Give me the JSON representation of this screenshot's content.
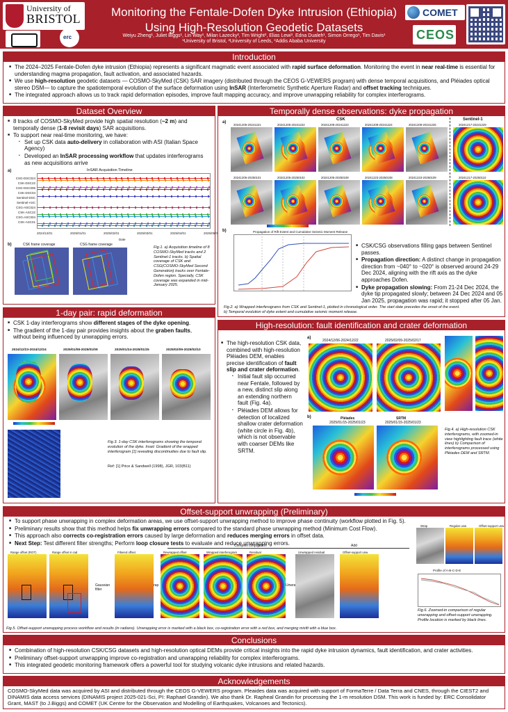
{
  "header": {
    "title_line1": "Monitoring the Fentale-Dofen Dyke Intrusion (Ethiopia)",
    "title_line2": "Using High-Resolution Geodetic Datasets",
    "authors": "Weiyu Zheng¹, Juliet Biggs¹, Lin Way¹, Milan Lazecky², Tim Wright², Elias Lewi³, Edna Dualeh¹, Simon Orrego¹, Tim Davis¹",
    "affiliations": "¹University of Bristol, ²University of Leeds, ³Addis Ababa University",
    "logo_bristol_l1": "University of",
    "logo_bristol_l2": "BRISTOL",
    "logo_erc": "erc",
    "logo_comet": "COMET",
    "logo_ceos": "CEOS"
  },
  "introduction": {
    "heading": "Introduction",
    "b1_pre": "The 2024–2025 Fentale-Dofen dyke intrusion (Ethiopia) represents a significant magmatic event associated with ",
    "b1_bold1": "rapid surface deformation",
    "b1_mid": ". Monitoring the event in ",
    "b1_bold2": "near real-time",
    "b1_post": " is essential for understanding magma propagation, fault activation, and associated hazards.",
    "b2_pre": "We use ",
    "b2_bold1": "high-resolution",
    "b2_mid1": " geodetic datasets — COSMO-SkyMed (CSK) SAR imagery (distributed through the CEOS G-VEWERS program) with dense temporal acquisitions, and Pléiades optical stereo DSM— to capture the spatiotemporal evolution of the surface deformation using ",
    "b2_bold2": "InSAR",
    "b2_mid2": " (Interferometric Synthetic Aperture Radar) and ",
    "b2_bold3": "offset tracking",
    "b2_post": " techniques.",
    "b3": "The integrated approach allows us to track rapid deformation episodes, improve fault mapping accuracy, and improve unwrapping reliability for complex interferograms."
  },
  "dataset": {
    "heading": "Dataset Overview",
    "b1_pre": "8 tracks of COSMO-SkyMed provide high spatial resolution (",
    "b1_bold1": "~2 m",
    "b1_mid": ") and temporally dense (",
    "b1_bold2": "1-8 revisit days",
    "b1_post": ") SAR acquisitions.",
    "b2": "To support near real-time monitoring, we have:",
    "s1_pre": "Set up CSK data ",
    "s1_bold": "auto-delivery",
    "s1_post": " in collaboration with ASI (Italian Space Agency)",
    "s2_pre": "Developed an ",
    "s2_bold": "InSAR processing workflow",
    "s2_post": " that updates interferograms as new acquisitions arrive",
    "timeline_title": "InSAR Acquisition Timeline",
    "timeline_tracks": [
      "CSG-DSC024",
      "CSK-DSC22",
      "CSG-DSC006",
      "CSK-DSC04",
      "Sentinel-DSC",
      "Sentinel-ASC",
      "CSG-ASC024",
      "CSK-ASC22",
      "CSG-ASC004",
      "CSK-ASC01"
    ],
    "timeline_dates": [
      "2024/12/01",
      "2025/01/01",
      "2025/02/01",
      "2025/03/01",
      "2025/04/01",
      "2025/05/01"
    ],
    "timeline_xlabel": "Date",
    "map_title_b1": "CSK frame coverage",
    "map_title_b2": "CSG frame coverage",
    "caption": "Fig.1. a) Acquisition timeline of 8 COSMO-SkyMed tracks and 2 Sentinel-1 tracks. b) Spatial coverage of CSK and CSG(COSMO-SkyMed Second Generation) tracks over Fentale-Dofen region. Specially, CSK coverage was expanded in mid-January 2025."
  },
  "temporal": {
    "heading": "Temporally dense observations: dyke propagation",
    "csk_label": "CSK",
    "sentinel_label": "Sentinel-1",
    "row1": [
      "20241205-20241221",
      "20241205-20241222",
      "20241208-20241223",
      "20241208-20241224",
      "20241208-20241225"
    ],
    "row2": [
      "20241206-20250101",
      "20241205-20250102",
      "20241205-20250108",
      "20241223-20250108",
      "20241223-20250109"
    ],
    "sentinel_row1": "20241217-20241229",
    "sentinel_row2": "20241217-20250110",
    "plot_title": "Propagation of Rift Extent and Cumulative Seismic Moment Release",
    "b1": "CSK/CSG observations filling gaps between Sentinel passes.",
    "b2_bold": "Propagation direction:",
    "b2_post": " A distinct change in propagation direction from ~040° to ~020° is observed around 24-29 Dec 2024, aligning with the rift axis as the dyke approaches Dofen.",
    "b3_bold": "Dyke propagation slowing:",
    "b3_post": " From 21-24 Dec 2024, the dyke tip propagated slowly; between 24 Dec 2024 and 05 Jan 2025, propagation was rapid; it stopped after 05 Jan.",
    "caption_l1": "Fig.2. a) Wrapped interferograms from CSK and Sentinel-1, plotted in chronological order. The start date precedes the onset of the event.",
    "caption_l2": "b) Temporal evolution of dyke extent and cumulative seismic moment release."
  },
  "oneday": {
    "heading": "1-day pair: rapid deformation",
    "b1_pre": "CSK 1-day interferograms show ",
    "b1_bold": "different stages of the dyke opening",
    "b1_post": ".",
    "b2_pre": "The gradient of the 1-day pair provides insights about the ",
    "b2_bold": "graben faults",
    "b2_post": ", without being influenced by unwrapping errors.",
    "pairs": [
      "2024/12/23-2024/12/24",
      "2025/01/08-2025/01/09",
      "2025/01/24-2025/01/25",
      "2025/02/09-2025/02/10"
    ],
    "caption": "Fig.3. 1-day CSK interferograms showing the temporal evolution of the dyke. Inset: Gradient of the wrapped interferogram [1] revealing discontinuities due to fault slip.",
    "ref": "Ref: [1] Price & Sandwell (1998), JGR, 103(B11)"
  },
  "highres": {
    "heading": "High-resolution: fault identification and crater deformation",
    "b1_pre": "The high-resolution CSK data, combined with high-resolution Pléiades DEM, enables precise identification of ",
    "b1_bold": "fault slip and crater deformation",
    "b1_post": ".",
    "s1": "Initial fault slip occurred near Fentale, followed by a new, distinct slip along an extending northern fault (Fig. 4a).",
    "s2": "Pléiades DEM allows for detection of localized shallow crater deformation (white circle in Fig. 4b), which is not observable with coarser DEMs like SRTM.",
    "a1": "2024/12/06-2024/12/22",
    "a2": "2025/02/09-2025/02/17",
    "b1_title": "Pléiades",
    "b1_dates": "2025/01/15-2025/01/23",
    "b2_title": "SRTM",
    "b2_dates": "2025/01/15-2025/01/23",
    "caption": "Fig.4. a) High-resolution CSK interferograms, with zoomed-in view highlighting fault trace (white lines) b) Comparison of interferograms processed using Pléiades DEM and SRTM."
  },
  "offset": {
    "heading": "Offset-support unwrapping (Preliminary)",
    "b1": "To support phase unwrapping in complex deformation areas, we use offset-support unwrapping method to improve phase continuity (workflow plotted in Fig. 5).",
    "b2_pre": "Preliminary results show that this method helps ",
    "b2_bold": "fix unwrapping errors",
    "b2_post": " compared to the standard phase unwrapping method (Minimum Cost Flow).",
    "b3_pre": "This approach also ",
    "b3_bold1": "corrects co-registration errors",
    "b3_mid": " caused by large deformation and ",
    "b3_bold2": "reduces merging errors",
    "b3_post": " in offset data.",
    "b4_bold": "Next Step:",
    "b4_mid": " Test different filter strengths; Perform ",
    "b4_bold2": "loop closure tests",
    "b4_post": " to evaluate and reduce unwrapping errors.",
    "wf_complex": "Complex conjugation",
    "wf_add": "Add",
    "wf_gauss": "Gaussian filter",
    "wf_rewrap": "Rewrap",
    "wf_unwrap": "Unwrap",
    "wf_titles": [
      "Range offset (ROT)",
      "Range offset in rad",
      "Filtered offset",
      "Rewrapped offset",
      "Wrapped interferogram",
      "Residual",
      "Unwrapped residual",
      "Offset-support unw"
    ],
    "f6_titles": [
      "Wrap",
      "Regular unw",
      "Offset-support unw"
    ],
    "f6_profile_title": "Profile of A-B-C-D-E",
    "caption5": "Fig.5. Offset-support unwrapping process workflow and results (in radians). Unwrapping error is marked with a black box, co-registration error with a red box, and merging misfit with a blue box.",
    "caption6": "Fig.6. Zoomed-in comparison of regular unwrapping and offset-support unwrapping. Profile location is marked by black lines."
  },
  "conclusions": {
    "heading": "Conclusions",
    "b1": "Combination of high-resolution CSK/CSG datasets and high-resolution optical DEMs provide critical insights into the rapid dyke intrusion dynamics, fault identification, and crater activities.",
    "b2": "Preliminary offset-support unwrapping improve co-registration and unwrapping reliability for complex interferograms.",
    "b3": "This integrated geodetic monitoring framework offers a powerful tool for studying volcanic dyke intrusions and related hazards."
  },
  "acknowledgements": {
    "heading": "Acknowledgements",
    "text": "COSMO-SkyMed data was acquired by ASI and distributed through the CEOS G-VEWERS program. Pleaides data was acquired with support of FormaTerre / Data Terra and CNES, through the CIEST2 and DINAMIS data access services (DINAMIS project 2025-021-Sci, PI: Raphael Grandin). We also thank Dr. Rapheal Grandin for processing the 1-m resolution DSM. This work is funded by: ERC Consolidator Grant, MAST (to J.Biggs) and COMET (UK Centre for the Observation and Modelling of Earthquakes, Volcanoes and Tectonics)."
  },
  "colors": {
    "accent": "#a8202a",
    "bristol": "#b01c2e"
  }
}
